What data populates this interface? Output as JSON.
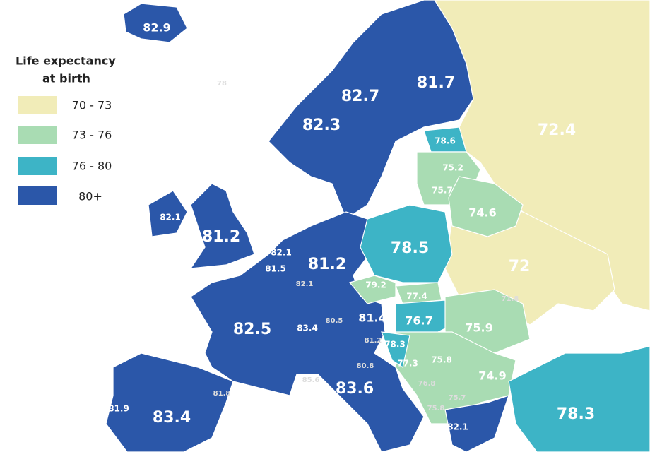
{
  "legend": {
    "title": [
      "Life expectancy",
      "at birth"
    ],
    "items": [
      {
        "label": "70 - 73",
        "color": "#f1ecb8"
      },
      {
        "label": "73 - 76",
        "color": "#a9dcb3"
      },
      {
        "label": "76 - 80",
        "color": "#3db4c6"
      },
      {
        "label": "80+",
        "color": "#2b57a9"
      }
    ]
  },
  "labels": [
    "82.9",
    "78",
    "82.3",
    "82.7",
    "81.7",
    "72.4",
    "78.6",
    "75.2",
    "75.7",
    "74.6",
    "80.8",
    "82.1",
    "81.2",
    "82.1",
    "81.5",
    "82.1",
    "81.2",
    "78.5",
    "72",
    "71.8",
    "79.2",
    "77.4",
    "81.4",
    "76.7",
    "75.9",
    "82.5",
    "83.4",
    "80.5",
    "81.2",
    "78.3",
    "75.8",
    "77.3",
    "74.9",
    "80.8",
    "83.6",
    "85.6",
    "76.8",
    "75.7",
    "75.8",
    "81.8",
    "81.9",
    "83.4",
    "82.1",
    "78.3"
  ]
}
